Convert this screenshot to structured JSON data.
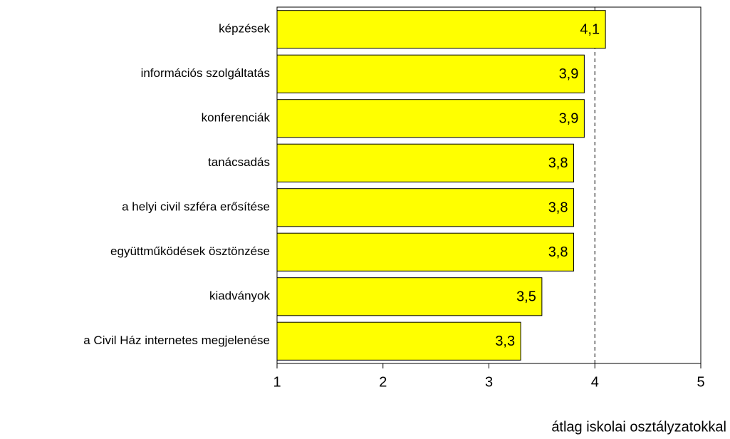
{
  "chart_data": {
    "type": "barh",
    "categories": [
      "képzések",
      "információs szolgáltatás",
      "konferenciák",
      "tanácsadás",
      "a helyi civil szféra erősítése",
      "együttműködések ösztönzése",
      "kiadványok",
      "a Civil Ház internetes megjelenése"
    ],
    "values": [
      4.1,
      3.9,
      3.9,
      3.8,
      3.8,
      3.8,
      3.5,
      3.3
    ],
    "value_labels": [
      "4,1",
      "3,9",
      "3,9",
      "3,8",
      "3,8",
      "3,8",
      "3,5",
      "3,3"
    ],
    "color": "#ffff00",
    "xlim": [
      1,
      5
    ],
    "xticks": [
      1,
      2,
      3,
      4,
      5
    ],
    "reference_line": 4,
    "xlabel": "átlag iskolai osztályzatokkal"
  }
}
